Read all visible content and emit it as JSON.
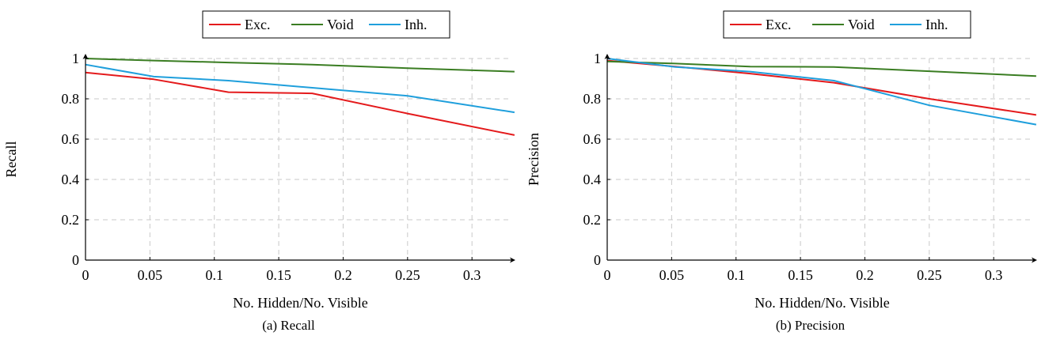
{
  "chart_data": [
    {
      "type": "line",
      "caption": "(a) Recall",
      "xlabel": "No. Hidden/No. Visible",
      "ylabel": "Recall",
      "xlim": [
        0,
        0.33
      ],
      "ylim": [
        0,
        1
      ],
      "xticks": [
        0,
        0.05,
        0.1,
        0.15,
        0.2,
        0.25,
        0.3
      ],
      "xtick_labels": [
        "0",
        "0.05",
        "0.1",
        "0.15",
        "0.2",
        "0.25",
        "0.3"
      ],
      "yticks": [
        0,
        0.2,
        0.4,
        0.6,
        0.8,
        1
      ],
      "ytick_labels": [
        "0",
        "0.2",
        "0.4",
        "0.6",
        "0.8",
        "1"
      ],
      "grid": true,
      "legend_position": "top-center",
      "series": [
        {
          "name": "Exc.",
          "color": "#e41a1c",
          "x": [
            0,
            0.053,
            0.111,
            0.176,
            0.25,
            0.333
          ],
          "y": [
            0.93,
            0.897,
            0.833,
            0.827,
            0.727,
            0.62
          ]
        },
        {
          "name": "Void",
          "color": "#3a7d22",
          "x": [
            0,
            0.053,
            0.111,
            0.176,
            0.25,
            0.333
          ],
          "y": [
            1.0,
            0.99,
            0.98,
            0.97,
            0.952,
            0.935
          ]
        },
        {
          "name": "Inh.",
          "color": "#1f9fdc",
          "x": [
            0,
            0.053,
            0.111,
            0.176,
            0.25,
            0.333
          ],
          "y": [
            0.97,
            0.91,
            0.89,
            0.855,
            0.815,
            0.733
          ]
        }
      ]
    },
    {
      "type": "line",
      "caption": "(b) Precision",
      "xlabel": "No. Hidden/No. Visible",
      "ylabel": "Precision",
      "xlim": [
        0,
        0.33
      ],
      "ylim": [
        0,
        1
      ],
      "xticks": [
        0,
        0.05,
        0.1,
        0.15,
        0.2,
        0.25,
        0.3
      ],
      "xtick_labels": [
        "0",
        "0.05",
        "0.1",
        "0.15",
        "0.2",
        "0.25",
        "0.3"
      ],
      "yticks": [
        0,
        0.2,
        0.4,
        0.6,
        0.8,
        1
      ],
      "ytick_labels": [
        "0",
        "0.2",
        "0.4",
        "0.6",
        "0.8",
        "1"
      ],
      "grid": true,
      "legend_position": "top-center",
      "series": [
        {
          "name": "Exc.",
          "color": "#e41a1c",
          "x": [
            0,
            0.053,
            0.111,
            0.176,
            0.25,
            0.333
          ],
          "y": [
            0.99,
            0.96,
            0.925,
            0.88,
            0.8,
            0.72
          ]
        },
        {
          "name": "Void",
          "color": "#3a7d22",
          "x": [
            0,
            0.053,
            0.111,
            0.176,
            0.25,
            0.333
          ],
          "y": [
            0.985,
            0.975,
            0.96,
            0.958,
            0.937,
            0.913
          ]
        },
        {
          "name": "Inh.",
          "color": "#1f9fdc",
          "x": [
            0,
            0.053,
            0.111,
            0.176,
            0.25,
            0.333
          ],
          "y": [
            1.0,
            0.958,
            0.935,
            0.89,
            0.768,
            0.672
          ]
        }
      ]
    }
  ]
}
